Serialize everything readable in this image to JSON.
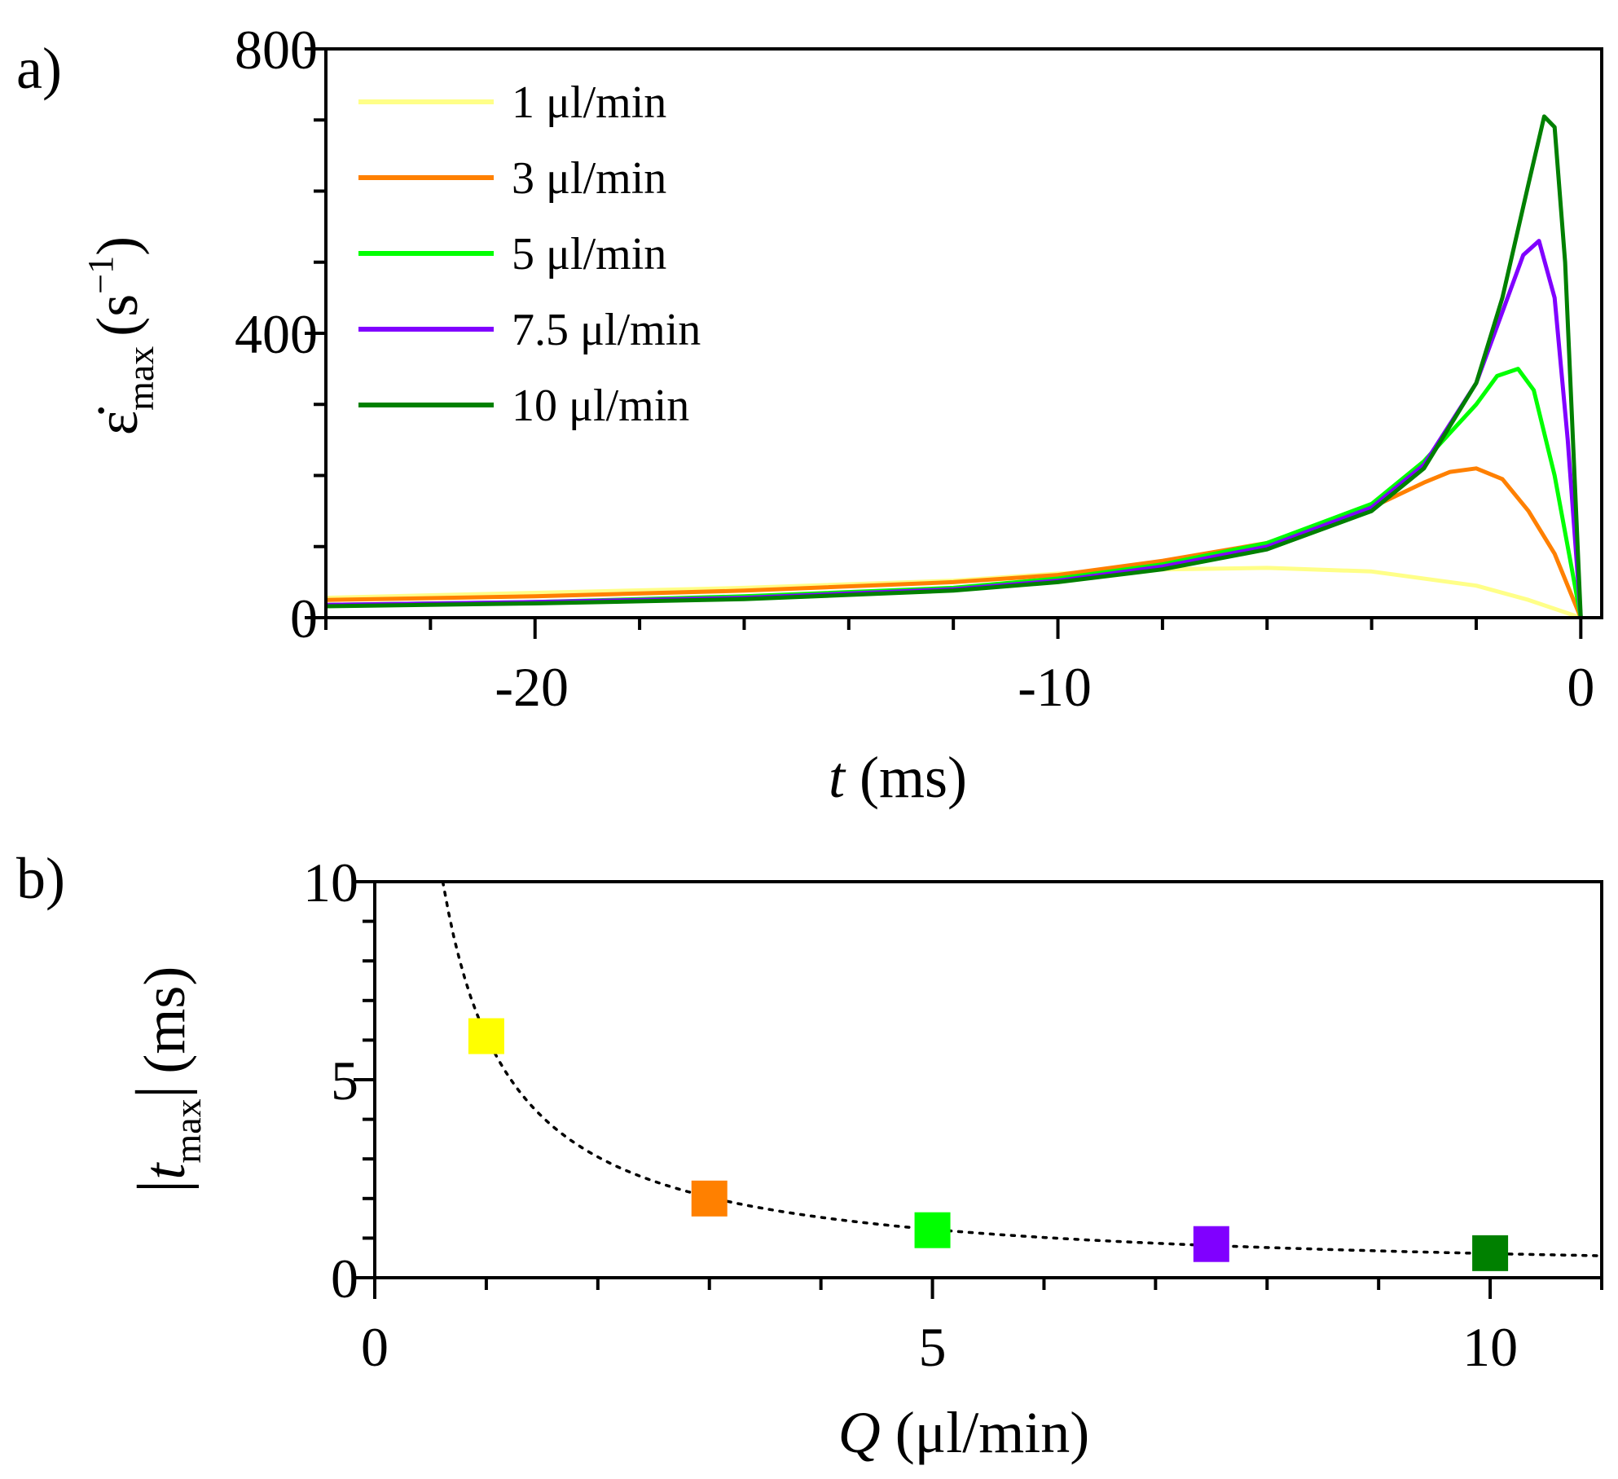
{
  "chart_data": [
    {
      "panel_label": "a)",
      "type": "line",
      "xlabel": {
        "var": "t",
        "unit": "(ms)"
      },
      "ylabel": {
        "symbol": "ε̇",
        "sub": "max",
        "unit_open": "(s",
        "unit_sup": "−1",
        "unit_close": ")"
      },
      "xlim": [
        -24,
        0.4
      ],
      "ylim": [
        0,
        800
      ],
      "xticks": [
        -20,
        -10,
        0
      ],
      "xtick_labels": [
        "-20",
        "-10",
        "0"
      ],
      "xminor_step": 2,
      "yticks": [
        0,
        400,
        800
      ],
      "ytick_labels": [
        "0",
        "400",
        "800"
      ],
      "yminor_step": 100,
      "legend_position": "top-left",
      "series": [
        {
          "name": "1 μl/min",
          "color": "#ffff88",
          "x": [
            -24,
            -20,
            -16,
            -12,
            -10,
            -8,
            -6,
            -4,
            -2,
            -1,
            0
          ],
          "y": [
            28,
            35,
            42,
            52,
            62,
            68,
            70,
            65,
            45,
            25,
            0
          ]
        },
        {
          "name": "3 μl/min",
          "color": "#ff8000",
          "x": [
            -24,
            -20,
            -16,
            -12,
            -10,
            -8,
            -6,
            -4,
            -3,
            -2.5,
            -2,
            -1.5,
            -1,
            -0.5,
            0
          ],
          "y": [
            25,
            30,
            38,
            50,
            60,
            80,
            105,
            155,
            190,
            205,
            210,
            195,
            150,
            90,
            0
          ]
        },
        {
          "name": "5 μl/min",
          "color": "#00ff00",
          "x": [
            -24,
            -20,
            -16,
            -12,
            -10,
            -8,
            -6,
            -4,
            -3,
            -2,
            -1.6,
            -1.2,
            -0.9,
            -0.5,
            -0.2,
            0
          ],
          "y": [
            18,
            22,
            30,
            42,
            55,
            75,
            105,
            160,
            220,
            300,
            340,
            350,
            320,
            200,
            80,
            0
          ]
        },
        {
          "name": "7.5 μl/min",
          "color": "#8000ff",
          "x": [
            -24,
            -20,
            -16,
            -12,
            -10,
            -8,
            -6,
            -4,
            -3,
            -2,
            -1.5,
            -1.1,
            -0.8,
            -0.5,
            -0.25,
            0
          ],
          "y": [
            18,
            22,
            28,
            40,
            52,
            72,
            100,
            155,
            215,
            330,
            430,
            510,
            530,
            450,
            250,
            0
          ]
        },
        {
          "name": "10 μl/min",
          "color": "#008000",
          "x": [
            -24,
            -20,
            -16,
            -12,
            -10,
            -8,
            -6,
            -4,
            -3,
            -2,
            -1.5,
            -1,
            -0.7,
            -0.5,
            -0.3,
            -0.15,
            0
          ],
          "y": [
            16,
            20,
            26,
            38,
            50,
            68,
            96,
            150,
            210,
            330,
            450,
            610,
            705,
            690,
            500,
            250,
            0
          ]
        }
      ]
    },
    {
      "panel_label": "b)",
      "type": "scatter",
      "xlabel": {
        "var": "Q",
        "unit": "(μl/min)"
      },
      "ylabel": {
        "var": "t",
        "sub": "max",
        "unit": "(ms)"
      },
      "xlim": [
        0,
        11
      ],
      "ylim": [
        0,
        10
      ],
      "xticks": [
        0,
        5,
        10
      ],
      "xtick_labels": [
        "0",
        "5",
        "10"
      ],
      "xminor_step": 1,
      "yticks": [
        0,
        5,
        10
      ],
      "ytick_labels": [
        "0",
        "5",
        "10"
      ],
      "yminor_step": 1,
      "points": [
        {
          "x": 1,
          "y": 6.1,
          "color": "#ffff00"
        },
        {
          "x": 3,
          "y": 2.0,
          "color": "#ff8000"
        },
        {
          "x": 5,
          "y": 1.2,
          "color": "#00ff00"
        },
        {
          "x": 7.5,
          "y": 0.85,
          "color": "#8000ff"
        },
        {
          "x": 10,
          "y": 0.62,
          "color": "#008000"
        }
      ],
      "fit": {
        "style": "dotted",
        "form": "A/Q",
        "A": 6.1,
        "x_start": 0.61,
        "x_end": 11
      }
    }
  ]
}
